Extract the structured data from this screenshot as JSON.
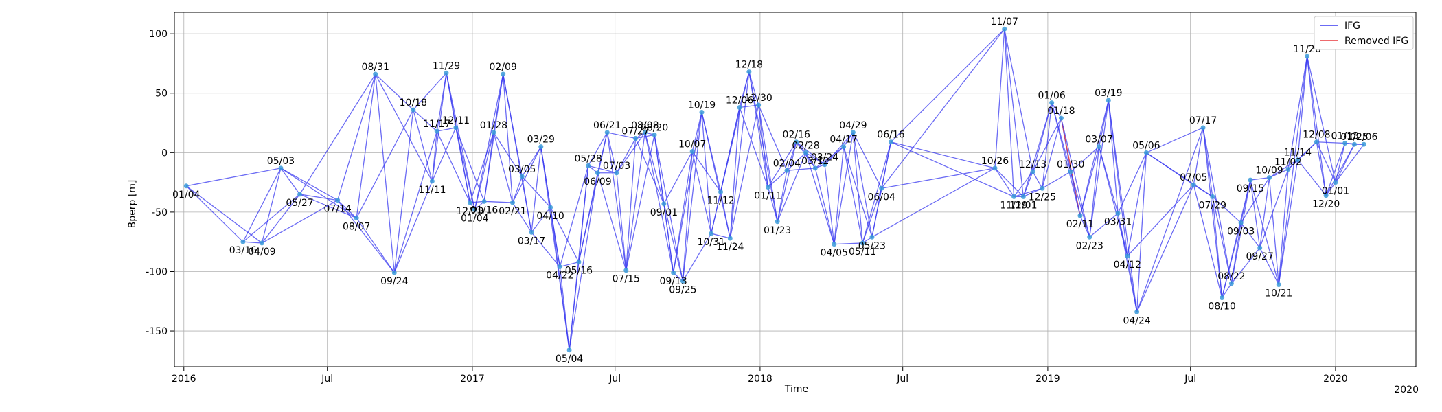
{
  "chart_data": {
    "type": "scatter",
    "xlabel": "Time",
    "ylabel": "Bperp [m]",
    "ylim": [
      -180,
      118
    ],
    "xlim": [
      "2015-12-20",
      "2020-04-12"
    ],
    "y_ticks": [
      100,
      50,
      0,
      -50,
      -100,
      -150
    ],
    "x_ticks": [
      {
        "date": "2016-01-01",
        "label": "2016"
      },
      {
        "date": "2016-07-01",
        "label": "Jul"
      },
      {
        "date": "2017-01-01",
        "label": "2017"
      },
      {
        "date": "2017-07-01",
        "label": "Jul"
      },
      {
        "date": "2018-01-01",
        "label": "2018"
      },
      {
        "date": "2018-07-01",
        "label": "Jul"
      },
      {
        "date": "2019-01-01",
        "label": "2019"
      },
      {
        "date": "2019-07-01",
        "label": "Jul"
      },
      {
        "date": "2020-01-01",
        "label": "2020"
      }
    ],
    "x_offset_label": "2020",
    "grid": true,
    "legend_position": "top-right",
    "legend": [
      {
        "label": "IFG",
        "color": "#3a3af0"
      },
      {
        "label": "Removed IFG",
        "color": "#e8383d"
      }
    ],
    "colors": {
      "ifg": "#3a3af0",
      "removed": "#e8383d",
      "point": "#3a9ad8"
    },
    "points": [
      {
        "date": "2016-01-04",
        "bperp": -28,
        "label": "01/04",
        "pos": "below"
      },
      {
        "date": "2016-03-16",
        "bperp": -75,
        "label": "03/16",
        "pos": "below"
      },
      {
        "date": "2016-04-09",
        "bperp": -76,
        "label": "04/09",
        "pos": "below"
      },
      {
        "date": "2016-05-03",
        "bperp": -13,
        "label": "05/03",
        "pos": "above"
      },
      {
        "date": "2016-05-27",
        "bperp": -35,
        "label": "05/27",
        "pos": "below"
      },
      {
        "date": "2016-07-14",
        "bperp": -40,
        "label": "07/14",
        "pos": "below"
      },
      {
        "date": "2016-08-07",
        "bperp": -55,
        "label": "08/07",
        "pos": "below"
      },
      {
        "date": "2016-08-31",
        "bperp": 66,
        "label": "08/31",
        "pos": "above"
      },
      {
        "date": "2016-09-24",
        "bperp": -101,
        "label": "09/24",
        "pos": "below"
      },
      {
        "date": "2016-10-18",
        "bperp": 36,
        "label": "10/18",
        "pos": "above"
      },
      {
        "date": "2016-11-11",
        "bperp": -24,
        "label": "11/11",
        "pos": "below"
      },
      {
        "date": "2016-11-17",
        "bperp": 18,
        "label": "11/17",
        "pos": "above"
      },
      {
        "date": "2016-11-29",
        "bperp": 67,
        "label": "11/29",
        "pos": "above"
      },
      {
        "date": "2016-12-11",
        "bperp": 21,
        "label": "12/11",
        "pos": "above"
      },
      {
        "date": "2016-12-29",
        "bperp": -42,
        "label": "12/29",
        "pos": "below"
      },
      {
        "date": "2017-01-04",
        "bperp": -48,
        "label": "01/04",
        "pos": "below"
      },
      {
        "date": "2017-01-16",
        "bperp": -41,
        "label": "01/16",
        "pos": "below"
      },
      {
        "date": "2017-01-28",
        "bperp": 17,
        "label": "01/28",
        "pos": "above"
      },
      {
        "date": "2017-02-09",
        "bperp": 66,
        "label": "02/09",
        "pos": "above"
      },
      {
        "date": "2017-02-21",
        "bperp": -42,
        "label": "02/21",
        "pos": "below"
      },
      {
        "date": "2017-03-05",
        "bperp": -20,
        "label": "03/05",
        "pos": "above"
      },
      {
        "date": "2017-03-17",
        "bperp": -67,
        "label": "03/17",
        "pos": "below"
      },
      {
        "date": "2017-03-29",
        "bperp": 5,
        "label": "03/29",
        "pos": "above"
      },
      {
        "date": "2017-04-10",
        "bperp": -46,
        "label": "04/10",
        "pos": "below"
      },
      {
        "date": "2017-04-22",
        "bperp": -96,
        "label": "04/22",
        "pos": "below"
      },
      {
        "date": "2017-05-04",
        "bperp": -166,
        "label": "05/04",
        "pos": "below"
      },
      {
        "date": "2017-05-16",
        "bperp": -92,
        "label": "05/16",
        "pos": "below"
      },
      {
        "date": "2017-05-28",
        "bperp": -11,
        "label": "05/28",
        "pos": "above"
      },
      {
        "date": "2017-06-09",
        "bperp": -17,
        "label": "06/09",
        "pos": "below"
      },
      {
        "date": "2017-06-21",
        "bperp": 17,
        "label": "06/21",
        "pos": "above"
      },
      {
        "date": "2017-07-03",
        "bperp": -17,
        "label": "07/03",
        "pos": "above"
      },
      {
        "date": "2017-07-15",
        "bperp": -99,
        "label": "07/15",
        "pos": "below"
      },
      {
        "date": "2017-07-27",
        "bperp": 12,
        "label": "07/27",
        "pos": "above"
      },
      {
        "date": "2017-08-08",
        "bperp": 17,
        "label": "08/08",
        "pos": "above"
      },
      {
        "date": "2017-08-20",
        "bperp": 15,
        "label": "08/20",
        "pos": "above"
      },
      {
        "date": "2017-09-01",
        "bperp": -43,
        "label": "09/01",
        "pos": "below"
      },
      {
        "date": "2017-09-13",
        "bperp": -101,
        "label": "09/13",
        "pos": "below"
      },
      {
        "date": "2017-09-25",
        "bperp": -108,
        "label": "09/25",
        "pos": "below"
      },
      {
        "date": "2017-10-07",
        "bperp": 1,
        "label": "10/07",
        "pos": "above"
      },
      {
        "date": "2017-10-19",
        "bperp": 34,
        "label": "10/19",
        "pos": "above"
      },
      {
        "date": "2017-10-31",
        "bperp": -68,
        "label": "10/31",
        "pos": "below"
      },
      {
        "date": "2017-11-12",
        "bperp": -33,
        "label": "11/12",
        "pos": "below"
      },
      {
        "date": "2017-11-24",
        "bperp": -72,
        "label": "11/24",
        "pos": "below"
      },
      {
        "date": "2017-12-06",
        "bperp": 38,
        "label": "12/06",
        "pos": "above"
      },
      {
        "date": "2017-12-18",
        "bperp": 68,
        "label": "12/18",
        "pos": "above"
      },
      {
        "date": "2017-12-30",
        "bperp": 40,
        "label": "12/30",
        "pos": "above"
      },
      {
        "date": "2018-01-11",
        "bperp": -29,
        "label": "01/11",
        "pos": "below"
      },
      {
        "date": "2018-01-23",
        "bperp": -58,
        "label": "01/23",
        "pos": "below"
      },
      {
        "date": "2018-02-04",
        "bperp": -15,
        "label": "02/04",
        "pos": "above"
      },
      {
        "date": "2018-02-16",
        "bperp": 9,
        "label": "02/16",
        "pos": "above"
      },
      {
        "date": "2018-02-28",
        "bperp": 0,
        "label": "02/28",
        "pos": "above"
      },
      {
        "date": "2018-03-12",
        "bperp": -13,
        "label": "03/12",
        "pos": "above"
      },
      {
        "date": "2018-03-24",
        "bperp": -10,
        "label": "03/24",
        "pos": "above"
      },
      {
        "date": "2018-04-05",
        "bperp": -77,
        "label": "04/05",
        "pos": "below"
      },
      {
        "date": "2018-04-17",
        "bperp": 5,
        "label": "04/17",
        "pos": "above"
      },
      {
        "date": "2018-04-29",
        "bperp": 17,
        "label": "04/29",
        "pos": "above"
      },
      {
        "date": "2018-05-11",
        "bperp": -76,
        "label": "05/11",
        "pos": "below"
      },
      {
        "date": "2018-05-23",
        "bperp": -71,
        "label": "05/23",
        "pos": "below"
      },
      {
        "date": "2018-06-04",
        "bperp": -30,
        "label": "06/04",
        "pos": "below"
      },
      {
        "date": "2018-06-16",
        "bperp": 9,
        "label": "06/16",
        "pos": "above"
      },
      {
        "date": "2018-10-26",
        "bperp": -13,
        "label": "10/26",
        "pos": "above"
      },
      {
        "date": "2018-11-07",
        "bperp": 104,
        "label": "11/07",
        "pos": "above"
      },
      {
        "date": "2018-11-19",
        "bperp": -37,
        "label": "11/19",
        "pos": "below"
      },
      {
        "date": "2018-12-01",
        "bperp": -37,
        "label": "12/01",
        "pos": "below"
      },
      {
        "date": "2018-12-13",
        "bperp": -16,
        "label": "12/13",
        "pos": "above"
      },
      {
        "date": "2018-12-25",
        "bperp": -30,
        "label": "12/25",
        "pos": "below"
      },
      {
        "date": "2019-01-06",
        "bperp": 42,
        "label": "01/06",
        "pos": "above"
      },
      {
        "date": "2019-01-18",
        "bperp": 29,
        "label": "01/18",
        "pos": "above"
      },
      {
        "date": "2019-01-30",
        "bperp": -16,
        "label": "01/30",
        "pos": "above"
      },
      {
        "date": "2019-02-11",
        "bperp": -53,
        "label": "02/11",
        "pos": "below"
      },
      {
        "date": "2019-02-23",
        "bperp": -71,
        "label": "02/23",
        "pos": "below"
      },
      {
        "date": "2019-03-07",
        "bperp": 5,
        "label": "03/07",
        "pos": "above"
      },
      {
        "date": "2019-03-19",
        "bperp": 44,
        "label": "03/19",
        "pos": "above"
      },
      {
        "date": "2019-03-31",
        "bperp": -51,
        "label": "03/31",
        "pos": "below"
      },
      {
        "date": "2019-04-12",
        "bperp": -87,
        "label": "04/12",
        "pos": "below"
      },
      {
        "date": "2019-04-24",
        "bperp": -134,
        "label": "04/24",
        "pos": "below"
      },
      {
        "date": "2019-05-06",
        "bperp": 0,
        "label": "05/06",
        "pos": "above"
      },
      {
        "date": "2019-07-05",
        "bperp": -27,
        "label": "07/05",
        "pos": "above"
      },
      {
        "date": "2019-07-17",
        "bperp": 21,
        "label": "07/17",
        "pos": "above"
      },
      {
        "date": "2019-07-29",
        "bperp": -37,
        "label": "07/29",
        "pos": "below"
      },
      {
        "date": "2019-08-10",
        "bperp": -122,
        "label": "08/10",
        "pos": "below"
      },
      {
        "date": "2019-08-22",
        "bperp": -110,
        "label": "08/22",
        "pos": "above"
      },
      {
        "date": "2019-09-03",
        "bperp": -59,
        "label": "09/03",
        "pos": "below"
      },
      {
        "date": "2019-09-15",
        "bperp": -23,
        "label": "09/15",
        "pos": "below"
      },
      {
        "date": "2019-09-27",
        "bperp": -80,
        "label": "09/27",
        "pos": "below"
      },
      {
        "date": "2019-10-09",
        "bperp": -21,
        "label": "10/09",
        "pos": "above"
      },
      {
        "date": "2019-10-21",
        "bperp": -111,
        "label": "10/21",
        "pos": "below"
      },
      {
        "date": "2019-11-02",
        "bperp": -14,
        "label": "11/02",
        "pos": "above"
      },
      {
        "date": "2019-11-14",
        "bperp": -6,
        "label": "11/14",
        "pos": "above"
      },
      {
        "date": "2019-11-26",
        "bperp": 81,
        "label": "11/26",
        "pos": "above"
      },
      {
        "date": "2019-12-08",
        "bperp": 9,
        "label": "12/08",
        "pos": "above"
      },
      {
        "date": "2019-12-20",
        "bperp": -36,
        "label": "12/20",
        "pos": "below"
      },
      {
        "date": "2020-01-01",
        "bperp": -25,
        "label": "01/01",
        "pos": "below"
      },
      {
        "date": "2020-01-13",
        "bperp": 8,
        "label": "01/13",
        "pos": "above"
      },
      {
        "date": "2020-01-25",
        "bperp": 7,
        "label": "01/25",
        "pos": "above"
      },
      {
        "date": "2020-02-06",
        "bperp": 7,
        "label": "02/06",
        "pos": "above"
      }
    ],
    "removed_pairs": [
      [
        "2019-01-18",
        "2019-02-11"
      ]
    ]
  }
}
